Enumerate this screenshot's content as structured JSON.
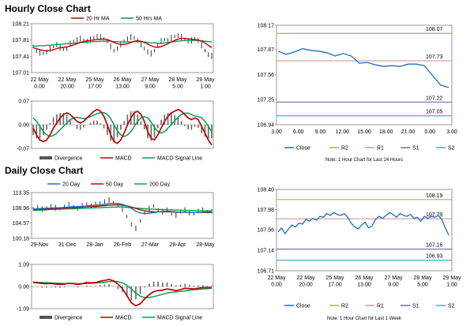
{
  "sections": {
    "hourly_title": "Hourly Close Chart",
    "daily_title": "Daily Close Chart"
  },
  "chart_data": [
    {
      "id": "hourly-price",
      "type": "line",
      "title": "",
      "legend": [
        "20 Hr MA",
        "50 Hrs MA"
      ],
      "legend_colors": [
        "#c00000",
        "#00a050"
      ],
      "y_ticks": [
        "108.21",
        "107.81",
        "107.41",
        "107.01"
      ],
      "ylim": [
        107.01,
        108.21
      ],
      "x_labels": [
        "22 May\n0.00",
        "22 May\n20.00",
        "25 May\n17.00",
        "26 May\n13.00",
        "27 May\n9.00",
        "28 May\n5.00",
        "29 May\n1.00"
      ],
      "price": [
        107.65,
        107.55,
        107.5,
        107.48,
        107.52,
        107.6,
        107.65,
        107.7,
        107.62,
        107.58,
        107.6,
        107.72,
        107.78,
        107.82,
        107.84,
        107.8,
        107.78,
        107.82,
        107.86,
        107.9,
        107.88,
        107.84,
        107.78,
        107.66,
        107.55,
        107.6,
        107.7,
        107.78,
        107.84,
        107.88,
        107.86,
        107.8,
        107.7,
        107.6,
        107.52,
        107.48,
        107.55,
        107.68,
        107.78,
        107.82,
        107.8,
        107.86,
        107.9,
        107.92,
        107.88,
        107.82,
        107.78,
        107.8,
        107.84,
        107.8,
        107.68,
        107.55,
        107.45,
        107.42
      ],
      "ma20": [
        107.62,
        107.6,
        107.57,
        107.55,
        107.54,
        107.55,
        107.57,
        107.6,
        107.62,
        107.63,
        107.64,
        107.66,
        107.69,
        107.72,
        107.75,
        107.77,
        107.79,
        107.8,
        107.81,
        107.82,
        107.83,
        107.83,
        107.82,
        107.79,
        107.75,
        107.72,
        107.7,
        107.7,
        107.72,
        107.75,
        107.78,
        107.79,
        107.78,
        107.75,
        107.71,
        107.67,
        107.64,
        107.63,
        107.65,
        107.68,
        107.72,
        107.76,
        107.8,
        107.83,
        107.85,
        107.85,
        107.84,
        107.83,
        107.82,
        107.81,
        107.78,
        107.74,
        107.68,
        107.62
      ],
      "ma50": [
        107.66,
        107.66,
        107.67,
        107.67,
        107.68,
        107.68,
        107.69,
        107.7,
        107.7,
        107.71,
        107.72,
        107.72,
        107.73,
        107.74,
        107.75,
        107.75,
        107.76,
        107.76,
        107.77,
        107.77,
        107.78,
        107.78,
        107.78,
        107.78,
        107.77,
        107.77,
        107.76,
        107.76,
        107.76,
        107.76,
        107.77,
        107.77,
        107.77,
        107.76,
        107.75,
        107.74,
        107.74,
        107.73,
        107.73,
        107.74,
        107.75,
        107.76,
        107.77,
        107.78,
        107.79,
        107.8,
        107.8,
        107.8,
        107.8,
        107.8,
        107.79,
        107.78,
        107.77,
        107.76
      ]
    },
    {
      "id": "hourly-macd",
      "type": "line",
      "legend": [
        "Divergence",
        "MACD",
        "MACD Signal Line"
      ],
      "legend_colors": [
        "#555555",
        "#c00000",
        "#00a050"
      ],
      "y_ticks": [
        "0.07",
        "0.00",
        "-0.07"
      ],
      "ylim": [
        -0.07,
        0.07
      ],
      "macd": [
        -0.01,
        -0.03,
        -0.045,
        -0.05,
        -0.045,
        -0.03,
        -0.01,
        0.005,
        0.02,
        0.03,
        0.035,
        0.03,
        0.02,
        0.01,
        0.005,
        0.01,
        0.02,
        0.03,
        0.04,
        0.045,
        0.04,
        0.025,
        0.0,
        -0.03,
        -0.05,
        -0.055,
        -0.045,
        -0.025,
        0.0,
        0.02,
        0.035,
        0.04,
        0.03,
        0.01,
        -0.02,
        -0.04,
        -0.045,
        -0.03,
        -0.01,
        0.01,
        0.025,
        0.035,
        0.04,
        0.045,
        0.04,
        0.03,
        0.02,
        0.015,
        0.02,
        0.015,
        -0.005,
        -0.025,
        -0.045,
        -0.06
      ],
      "signal": [
        0.02,
        0.01,
        -0.005,
        -0.02,
        -0.03,
        -0.035,
        -0.032,
        -0.025,
        -0.015,
        -0.005,
        0.005,
        0.015,
        0.02,
        0.022,
        0.02,
        0.018,
        0.02,
        0.024,
        0.028,
        0.033,
        0.036,
        0.036,
        0.03,
        0.018,
        0.0,
        -0.018,
        -0.03,
        -0.035,
        -0.03,
        -0.02,
        -0.005,
        0.01,
        0.02,
        0.024,
        0.02,
        0.008,
        -0.008,
        -0.02,
        -0.025,
        -0.02,
        -0.01,
        0.0,
        0.012,
        0.022,
        0.03,
        0.034,
        0.034,
        0.03,
        0.026,
        0.024,
        0.02,
        0.01,
        -0.005,
        -0.02
      ]
    },
    {
      "id": "hourly-right",
      "type": "line",
      "y_ticks": [
        "108.17",
        "107.87",
        "107.56",
        "107.25",
        "106.94"
      ],
      "ylim": [
        106.94,
        108.17
      ],
      "x_labels": [
        "3.00",
        "6.00",
        "9.00",
        "12.00",
        "15.00",
        "18.00",
        "21.00",
        "0.00",
        "3.00"
      ],
      "close": [
        107.85,
        107.81,
        107.84,
        107.88,
        107.86,
        107.85,
        107.83,
        107.79,
        107.82,
        107.79,
        107.7,
        107.71,
        107.68,
        107.66,
        107.67,
        107.66,
        107.69,
        107.69,
        107.67,
        107.55,
        107.43,
        107.4
      ],
      "levels": [
        {
          "name": "R2",
          "value": 108.07,
          "label": "108.07",
          "color": "#9bbb59"
        },
        {
          "name": "R1",
          "value": 107.73,
          "label": "107.73",
          "color": "#d99694"
        },
        {
          "name": "S1",
          "value": 107.22,
          "label": "107.22",
          "color": "#8064a2"
        },
        {
          "name": "S2",
          "value": 107.05,
          "label": "107.05",
          "color": "#4bacc6"
        }
      ],
      "legend": [
        "Close",
        "R2",
        "R1",
        "S1",
        "S2"
      ],
      "note": "Note: 1 Hour Chart for Last 24 Hours"
    },
    {
      "id": "daily-price",
      "type": "line",
      "legend": [
        "20 Day",
        "50 Day",
        "200 Day"
      ],
      "legend_colors": [
        "#1f6fb5",
        "#c00000",
        "#00a050"
      ],
      "y_ticks": [
        "113.35",
        "108.96",
        "104.57",
        "100.18"
      ],
      "ylim": [
        100.18,
        113.35
      ],
      "x_labels": [
        "29-Nov",
        "31-Dec",
        "28-Jan",
        "26-Feb",
        "27-Mar",
        "28-Apr",
        "28-May"
      ],
      "price": [
        108.8,
        109.1,
        108.6,
        108.9,
        109.4,
        109.0,
        108.7,
        109.2,
        109.8,
        109.3,
        108.9,
        109.6,
        110.1,
        109.5,
        109.9,
        110.4,
        110.8,
        111.2,
        110.5,
        109.8,
        108.6,
        106.5,
        104.2,
        103.1,
        105.2,
        107.6,
        108.8,
        109.5,
        108.3,
        107.9,
        108.6,
        107.4,
        106.9,
        107.8,
        108.5,
        107.6,
        107.2,
        108.1,
        108.3,
        107.9,
        108.0
      ],
      "ma20": [
        108.6,
        108.7,
        108.8,
        108.8,
        108.9,
        109.0,
        109.0,
        109.1,
        109.2,
        109.3,
        109.3,
        109.4,
        109.5,
        109.6,
        109.7,
        109.8,
        110.0,
        110.2,
        110.3,
        110.2,
        110.0,
        109.5,
        108.8,
        108.0,
        107.5,
        107.3,
        107.4,
        107.6,
        107.8,
        107.9,
        108.0,
        107.9,
        107.8,
        107.7,
        107.7,
        107.6,
        107.6,
        107.6,
        107.7,
        107.8,
        107.8
      ],
      "ma50": [
        108.4,
        108.5,
        108.6,
        108.6,
        108.7,
        108.8,
        108.8,
        108.9,
        109.0,
        109.0,
        109.1,
        109.2,
        109.3,
        109.3,
        109.4,
        109.5,
        109.6,
        109.7,
        109.8,
        109.8,
        109.7,
        109.5,
        109.2,
        108.8,
        108.4,
        108.1,
        107.9,
        107.8,
        107.8,
        107.8,
        107.8,
        107.8,
        107.7,
        107.7,
        107.7,
        107.6,
        107.6,
        107.6,
        107.6,
        107.6,
        107.6
      ],
      "ma200": [
        108.2,
        108.3,
        108.3,
        108.4,
        108.5,
        108.5,
        108.6,
        108.6,
        108.7,
        108.7,
        108.8,
        108.8,
        108.9,
        108.9,
        109.0,
        109.0,
        109.1,
        109.1,
        109.2,
        109.2,
        109.2,
        109.1,
        109.0,
        108.9,
        108.8,
        108.7,
        108.6,
        108.6,
        108.5,
        108.5,
        108.4,
        108.4,
        108.3,
        108.3,
        108.2,
        108.2,
        108.2,
        108.1,
        108.1,
        108.1,
        108.1
      ]
    },
    {
      "id": "daily-macd",
      "type": "line",
      "legend": [
        "Divergence",
        "MACD",
        "MACD Signal Line"
      ],
      "legend_colors": [
        "#555555",
        "#c00000",
        "#00a050"
      ],
      "y_ticks": [
        "1.09",
        "0.00",
        "-1.09"
      ],
      "ylim": [
        -1.09,
        1.09
      ],
      "macd": [
        0.2,
        0.18,
        0.15,
        0.14,
        0.15,
        0.12,
        0.1,
        0.12,
        0.16,
        0.14,
        0.1,
        0.14,
        0.2,
        0.18,
        0.2,
        0.26,
        0.3,
        0.35,
        0.28,
        0.12,
        -0.1,
        -0.45,
        -0.8,
        -0.95,
        -0.85,
        -0.6,
        -0.4,
        -0.25,
        -0.2,
        -0.18,
        -0.12,
        -0.15,
        -0.2,
        -0.15,
        -0.08,
        -0.1,
        -0.12,
        -0.08,
        -0.05,
        -0.06,
        -0.05
      ],
      "signal": [
        0.22,
        0.21,
        0.2,
        0.19,
        0.18,
        0.17,
        0.16,
        0.15,
        0.15,
        0.15,
        0.14,
        0.14,
        0.15,
        0.16,
        0.17,
        0.19,
        0.21,
        0.24,
        0.26,
        0.24,
        0.18,
        0.06,
        -0.12,
        -0.32,
        -0.48,
        -0.55,
        -0.54,
        -0.5,
        -0.44,
        -0.38,
        -0.32,
        -0.28,
        -0.26,
        -0.24,
        -0.21,
        -0.18,
        -0.16,
        -0.14,
        -0.12,
        -0.1,
        -0.09
      ]
    },
    {
      "id": "daily-right",
      "type": "line",
      "y_ticks": [
        "108.40",
        "107.98",
        "107.56",
        "107.14",
        "106.71"
      ],
      "ylim": [
        106.71,
        108.4
      ],
      "x_labels": [
        "22 May\n0.00",
        "22 May\n20.00",
        "25 May\n17.00",
        "26 May\n13.00",
        "27 May\n9.00",
        "28 May\n5.00",
        "29 May\n1.00"
      ],
      "close": [
        107.52,
        107.6,
        107.48,
        107.58,
        107.66,
        107.62,
        107.7,
        107.68,
        107.78,
        107.74,
        107.8,
        107.76,
        107.84,
        107.82,
        107.9,
        107.86,
        107.92,
        107.88,
        107.86,
        107.9,
        107.82,
        107.7,
        107.62,
        107.58,
        107.66,
        107.72,
        107.6,
        107.64,
        107.78,
        107.84,
        107.8,
        107.86,
        107.92,
        107.88,
        107.82,
        107.9,
        107.86,
        107.84,
        107.88,
        107.8,
        107.82,
        107.74,
        107.84,
        107.8,
        107.84,
        107.82,
        107.86,
        107.78,
        107.6,
        107.45
      ],
      "levels": [
        {
          "name": "R2",
          "value": 108.19,
          "label": "108.19",
          "color": "#9bbb59"
        },
        {
          "name": "R1",
          "value": 107.79,
          "label": "107.79",
          "color": "#d99694"
        },
        {
          "name": "S1",
          "value": 107.16,
          "label": "107.16",
          "color": "#8064a2"
        },
        {
          "name": "S2",
          "value": 106.93,
          "label": "106.93",
          "color": "#4bacc6"
        }
      ],
      "legend": [
        "Close",
        "R2",
        "R1",
        "S1",
        "S2"
      ],
      "note": "Note: 1 Hour Chart for Last 1 Week"
    }
  ]
}
